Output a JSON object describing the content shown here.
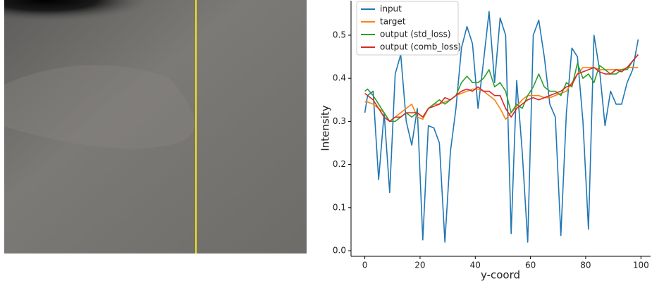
{
  "chart_data": {
    "type": "line",
    "x_label": "y-coord",
    "y_label": "Intensity",
    "x": [
      0,
      1,
      3,
      5,
      7,
      9,
      11,
      13,
      15,
      17,
      19,
      21,
      23,
      25,
      27,
      29,
      31,
      33,
      35,
      37,
      39,
      41,
      43,
      45,
      47,
      49,
      51,
      53,
      55,
      57,
      59,
      61,
      63,
      65,
      67,
      69,
      71,
      73,
      75,
      77,
      79,
      81,
      83,
      85,
      87,
      89,
      91,
      93,
      95,
      97,
      99
    ],
    "series": [
      {
        "name": "input",
        "color": "#1f77b4",
        "values": [
          0.32,
          0.36,
          0.37,
          0.165,
          0.32,
          0.135,
          0.41,
          0.455,
          0.3,
          0.245,
          0.33,
          0.025,
          0.29,
          0.285,
          0.25,
          0.02,
          0.23,
          0.33,
          0.47,
          0.52,
          0.48,
          0.33,
          0.44,
          0.555,
          0.39,
          0.54,
          0.5,
          0.04,
          0.395,
          0.23,
          0.02,
          0.5,
          0.535,
          0.45,
          0.34,
          0.31,
          0.035,
          0.32,
          0.47,
          0.45,
          0.3,
          0.05,
          0.5,
          0.42,
          0.29,
          0.37,
          0.34,
          0.34,
          0.39,
          0.42,
          0.49
        ]
      },
      {
        "name": "target",
        "color": "#ff7f0e",
        "values": [
          0.345,
          0.345,
          0.34,
          0.33,
          0.32,
          0.3,
          0.31,
          0.32,
          0.33,
          0.34,
          0.31,
          0.305,
          0.33,
          0.34,
          0.34,
          0.345,
          0.35,
          0.36,
          0.365,
          0.37,
          0.375,
          0.375,
          0.37,
          0.36,
          0.35,
          0.33,
          0.305,
          0.32,
          0.335,
          0.35,
          0.36,
          0.36,
          0.36,
          0.355,
          0.355,
          0.36,
          0.365,
          0.37,
          0.39,
          0.41,
          0.425,
          0.425,
          0.425,
          0.42,
          0.42,
          0.42,
          0.42,
          0.42,
          0.425,
          0.425,
          0.425
        ]
      },
      {
        "name": "output (std_loss)",
        "color": "#2ca02c",
        "values": [
          0.37,
          0.375,
          0.36,
          0.34,
          0.32,
          0.3,
          0.3,
          0.31,
          0.32,
          0.31,
          0.32,
          0.31,
          0.33,
          0.34,
          0.35,
          0.34,
          0.35,
          0.36,
          0.39,
          0.405,
          0.39,
          0.39,
          0.4,
          0.42,
          0.38,
          0.39,
          0.37,
          0.32,
          0.34,
          0.33,
          0.36,
          0.38,
          0.41,
          0.38,
          0.37,
          0.37,
          0.36,
          0.39,
          0.38,
          0.435,
          0.4,
          0.41,
          0.39,
          0.43,
          0.42,
          0.41,
          0.41,
          0.42,
          0.42,
          0.44,
          0.455
        ]
      },
      {
        "name": "output (comb_loss)",
        "color": "#d62728",
        "values": [
          0.365,
          0.36,
          0.35,
          0.33,
          0.31,
          0.3,
          0.31,
          0.31,
          0.32,
          0.32,
          0.32,
          0.31,
          0.33,
          0.335,
          0.34,
          0.355,
          0.35,
          0.36,
          0.37,
          0.375,
          0.37,
          0.38,
          0.37,
          0.37,
          0.36,
          0.36,
          0.33,
          0.31,
          0.33,
          0.34,
          0.35,
          0.355,
          0.35,
          0.355,
          0.36,
          0.365,
          0.37,
          0.38,
          0.385,
          0.41,
          0.415,
          0.42,
          0.425,
          0.415,
          0.41,
          0.41,
          0.42,
          0.415,
          0.425,
          0.44,
          0.455
        ]
      }
    ],
    "xlim": [
      -5,
      103.5
    ],
    "ylim": [
      -0.013,
      0.58
    ],
    "xticks": [
      0,
      20,
      40,
      60,
      80,
      100
    ],
    "yticks": [
      {
        "value": 0,
        "label": "0.0"
      },
      0.1,
      0.2,
      0.3,
      0.4,
      0.5
    ],
    "legend": "upper left"
  }
}
